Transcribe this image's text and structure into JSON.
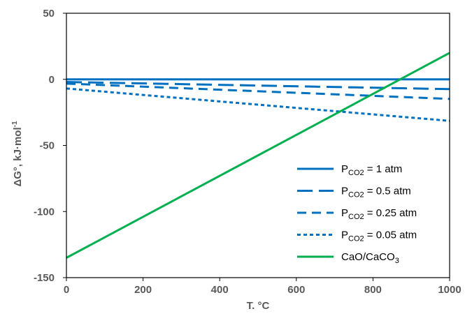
{
  "chart_data": {
    "type": "line",
    "x_axis": {
      "label": "T. °C",
      "min": 0,
      "max": 1000,
      "ticks": [
        0,
        200,
        400,
        600,
        800,
        1000
      ]
    },
    "y_axis": {
      "label_main": "ΔG°, kJ·mol",
      "label_sup": "-1",
      "min": -150,
      "max": 50,
      "ticks": [
        50,
        0,
        -50,
        -100,
        -150
      ]
    },
    "grid": false,
    "legend_position": "lower-right",
    "series": [
      {
        "name_main": "P",
        "name_sub": "CO2",
        "name_rest": " = 1 atm",
        "color": "#0070c0",
        "dash": "solid",
        "x": [
          0,
          1000
        ],
        "y": [
          0,
          0
        ]
      },
      {
        "name_main": "P",
        "name_sub": "CO2",
        "name_rest": " = 0.5 atm",
        "color": "#0070c0",
        "dash": "long",
        "x": [
          0,
          1000
        ],
        "y": [
          -2.0,
          -7.4
        ]
      },
      {
        "name_main": "P",
        "name_sub": "CO2",
        "name_rest": " = 0.25 atm",
        "color": "#0070c0",
        "dash": "medium",
        "x": [
          0,
          1000
        ],
        "y": [
          -3.2,
          -14.8
        ]
      },
      {
        "name_main": "P",
        "name_sub": "CO2",
        "name_rest": " = 0.05 atm",
        "color": "#0070c0",
        "dash": "short",
        "x": [
          0,
          1000
        ],
        "y": [
          -6.9,
          -31.4
        ]
      },
      {
        "name_main": "CaO/CaCO",
        "name_sub": "3",
        "name_rest": "",
        "color": "#00b050",
        "dash": "solid",
        "x": [
          0,
          1000
        ],
        "y": [
          -135,
          20
        ]
      }
    ]
  }
}
